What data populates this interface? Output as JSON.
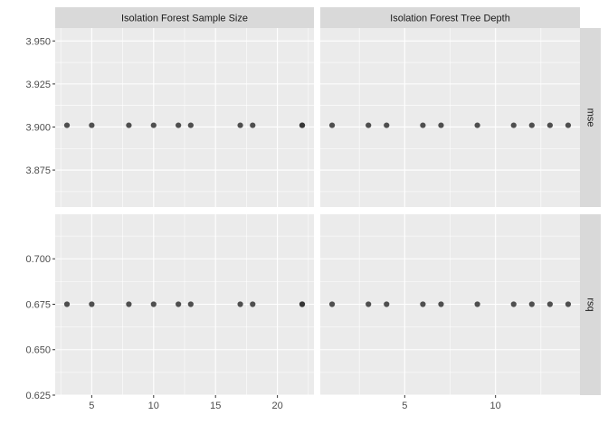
{
  "chart_data": {
    "type": "scatter",
    "facet_cols": [
      {
        "label": "Isolation Forest Sample Size",
        "xlim": [
          2.05,
          22.95
        ],
        "xticks": [
          5,
          10,
          15,
          20
        ]
      },
      {
        "label": "Isolation Forest Tree Depth",
        "xlim": [
          0.35,
          14.65
        ],
        "xticks": [
          5,
          10
        ]
      }
    ],
    "facet_rows": [
      {
        "label": "mse",
        "ylim": [
          3.8535,
          3.9575
        ],
        "yticks": [
          "3.875",
          "3.900",
          "3.925",
          "3.950"
        ]
      },
      {
        "label": "rsq",
        "ylim": [
          0.625,
          0.7245
        ],
        "yticks": [
          "0.625",
          "0.650",
          "0.675",
          "0.700"
        ]
      }
    ],
    "panels": [
      {
        "col": 0,
        "row": 0,
        "points": [
          {
            "x": 3,
            "y": 3.901
          },
          {
            "x": 5,
            "y": 3.901
          },
          {
            "x": 8,
            "y": 3.901
          },
          {
            "x": 10,
            "y": 3.901
          },
          {
            "x": 12,
            "y": 3.901
          },
          {
            "x": 13,
            "y": 3.901
          },
          {
            "x": 17,
            "y": 3.901
          },
          {
            "x": 18,
            "y": 3.901
          },
          {
            "x": 22,
            "y": 3.901
          },
          {
            "x": 22,
            "y": 3.901
          }
        ]
      },
      {
        "col": 1,
        "row": 0,
        "points": [
          {
            "x": 1,
            "y": 3.901
          },
          {
            "x": 3,
            "y": 3.901
          },
          {
            "x": 4,
            "y": 3.901
          },
          {
            "x": 6,
            "y": 3.901
          },
          {
            "x": 7,
            "y": 3.901
          },
          {
            "x": 9,
            "y": 3.901
          },
          {
            "x": 11,
            "y": 3.901
          },
          {
            "x": 12,
            "y": 3.901
          },
          {
            "x": 13,
            "y": 3.901
          },
          {
            "x": 14,
            "y": 3.901
          }
        ]
      },
      {
        "col": 0,
        "row": 1,
        "points": [
          {
            "x": 3,
            "y": 0.675
          },
          {
            "x": 5,
            "y": 0.675
          },
          {
            "x": 8,
            "y": 0.675
          },
          {
            "x": 10,
            "y": 0.675
          },
          {
            "x": 12,
            "y": 0.675
          },
          {
            "x": 13,
            "y": 0.675
          },
          {
            "x": 17,
            "y": 0.675
          },
          {
            "x": 18,
            "y": 0.675
          },
          {
            "x": 22,
            "y": 0.675
          },
          {
            "x": 22,
            "y": 0.675
          }
        ]
      },
      {
        "col": 1,
        "row": 1,
        "points": [
          {
            "x": 1,
            "y": 0.675
          },
          {
            "x": 3,
            "y": 0.675
          },
          {
            "x": 4,
            "y": 0.675
          },
          {
            "x": 6,
            "y": 0.675
          },
          {
            "x": 7,
            "y": 0.675
          },
          {
            "x": 9,
            "y": 0.675
          },
          {
            "x": 11,
            "y": 0.675
          },
          {
            "x": 12,
            "y": 0.675
          },
          {
            "x": 13,
            "y": 0.675
          },
          {
            "x": 14,
            "y": 0.675
          }
        ]
      }
    ],
    "grid": true,
    "colors": {
      "panel_bg": "#ebebeb",
      "grid": "#ffffff",
      "strip_bg": "#d9d9d9",
      "point": "#333333",
      "tick_text": "#4d4d4d",
      "strip_text": "#1a1a1a"
    }
  }
}
